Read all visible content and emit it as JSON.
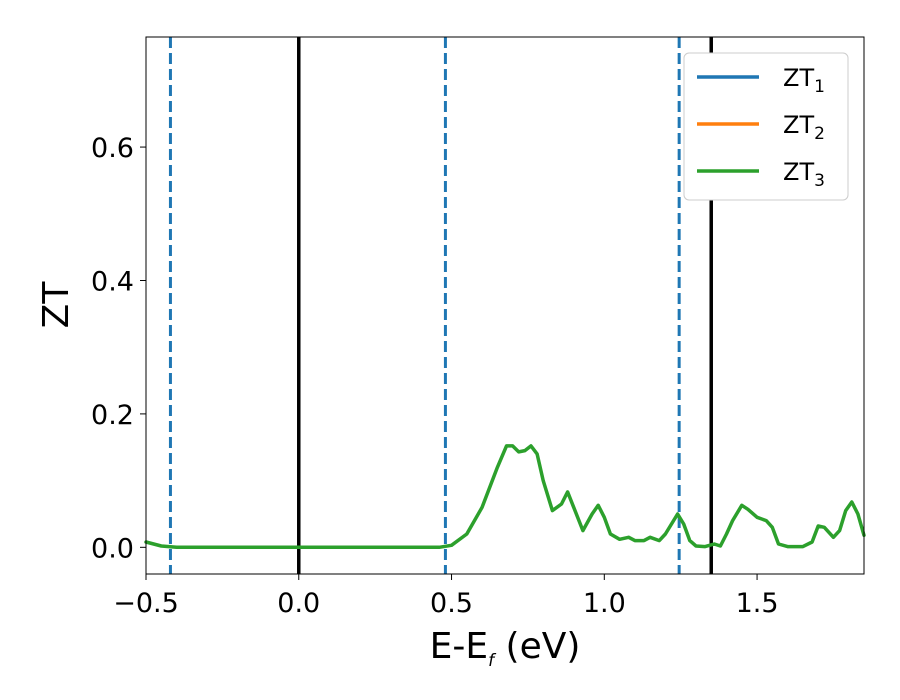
{
  "chart_data": {
    "type": "line",
    "xlabel_main": "E-E",
    "xlabel_sub": "f",
    "xlabel_unit": " (eV)",
    "ylabel": "ZT",
    "xlim": [
      -0.5,
      1.85
    ],
    "ylim": [
      -0.04,
      0.765
    ],
    "grid": false,
    "legend_position": "top-right",
    "x_ticks": [
      {
        "value": -0.5,
        "label": "−0.5"
      },
      {
        "value": 0.0,
        "label": "0.0"
      },
      {
        "value": 0.5,
        "label": "0.5"
      },
      {
        "value": 1.0,
        "label": "1.0"
      },
      {
        "value": 1.5,
        "label": "1.5"
      }
    ],
    "y_ticks": [
      {
        "value": 0.0,
        "label": "0.0"
      },
      {
        "value": 0.2,
        "label": "0.2"
      },
      {
        "value": 0.4,
        "label": "0.4"
      },
      {
        "value": 0.6,
        "label": "0.6"
      }
    ],
    "vlines": [
      {
        "x": -0.42,
        "style": "dashed",
        "color": "#1f77b4"
      },
      {
        "x": 0.0,
        "style": "solid",
        "color": "#000000"
      },
      {
        "x": 0.48,
        "style": "dashed",
        "color": "#1f77b4"
      },
      {
        "x": 1.245,
        "style": "dashed",
        "color": "#1f77b4"
      },
      {
        "x": 1.35,
        "style": "solid",
        "color": "#000000"
      }
    ],
    "series": [
      {
        "name": "ZT",
        "subscript": "1",
        "color": "#1f77b4"
      },
      {
        "name": "ZT",
        "subscript": "2",
        "color": "#ff7f0e"
      },
      {
        "name": "ZT",
        "subscript": "3",
        "color": "#2ca02c",
        "x": [
          -0.5,
          -0.45,
          -0.4,
          -0.3,
          -0.2,
          -0.1,
          0.0,
          0.1,
          0.2,
          0.3,
          0.4,
          0.46,
          0.5,
          0.55,
          0.6,
          0.65,
          0.68,
          0.7,
          0.72,
          0.74,
          0.76,
          0.78,
          0.8,
          0.83,
          0.86,
          0.88,
          0.9,
          0.93,
          0.96,
          0.98,
          1.0,
          1.02,
          1.05,
          1.08,
          1.1,
          1.13,
          1.15,
          1.18,
          1.2,
          1.22,
          1.24,
          1.26,
          1.28,
          1.3,
          1.33,
          1.36,
          1.38,
          1.4,
          1.42,
          1.45,
          1.47,
          1.5,
          1.53,
          1.55,
          1.57,
          1.6,
          1.62,
          1.65,
          1.68,
          1.7,
          1.72,
          1.75,
          1.77,
          1.79,
          1.81,
          1.83,
          1.85
        ],
        "values": [
          0.008,
          0.002,
          0.0,
          0.0,
          0.0,
          0.0,
          0.0,
          0.0,
          0.0,
          0.0,
          0.0,
          0.0,
          0.003,
          0.02,
          0.06,
          0.12,
          0.152,
          0.152,
          0.143,
          0.145,
          0.152,
          0.14,
          0.1,
          0.055,
          0.065,
          0.083,
          0.06,
          0.025,
          0.05,
          0.063,
          0.045,
          0.02,
          0.012,
          0.015,
          0.01,
          0.01,
          0.015,
          0.01,
          0.02,
          0.035,
          0.05,
          0.035,
          0.01,
          0.002,
          0.001,
          0.005,
          0.002,
          0.02,
          0.04,
          0.063,
          0.057,
          0.045,
          0.04,
          0.03,
          0.005,
          0.001,
          0.001,
          0.001,
          0.008,
          0.032,
          0.03,
          0.015,
          0.025,
          0.055,
          0.068,
          0.05,
          0.018
        ]
      }
    ]
  }
}
